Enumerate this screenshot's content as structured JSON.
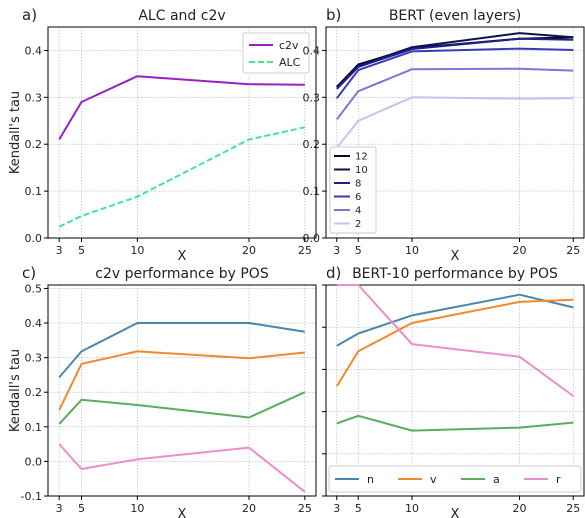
{
  "chart_data": [
    {
      "type": "line",
      "panel_label": "a)",
      "title": "ALC and c2v",
      "xlabel": "X",
      "ylabel": "Kendall's tau",
      "x": [
        3,
        5,
        10,
        20,
        25
      ],
      "xticks": [
        3,
        5,
        10,
        20,
        25
      ],
      "xlim": [
        2,
        26
      ],
      "ylim": [
        0,
        0.45
      ],
      "yticks": [
        "0.0",
        "0.1",
        "0.2",
        "0.3",
        "0.4"
      ],
      "grid": true,
      "legend": "top-right",
      "series": [
        {
          "name": "c2v",
          "color": "#9b1fc4",
          "style": "solid",
          "values": [
            0.21,
            0.29,
            0.345,
            0.328,
            0.327
          ]
        },
        {
          "name": "ALC",
          "color": "#3ee88e",
          "style": "dashed",
          "values": [
            0.024,
            0.047,
            0.088,
            0.21,
            0.236
          ]
        }
      ]
    },
    {
      "type": "line",
      "panel_label": "b)",
      "title": "BERT (even layers)",
      "xlabel": "X",
      "ylabel": "",
      "x": [
        3,
        5,
        10,
        20,
        25
      ],
      "xticks": [
        3,
        5,
        10,
        20,
        25
      ],
      "xlim": [
        2,
        26
      ],
      "ylim": [
        0,
        0.45
      ],
      "yticks": [
        "0.0",
        "0.1",
        "0.2",
        "0.3",
        "0.4"
      ],
      "grid": true,
      "legend": "bottom-left",
      "series": [
        {
          "name": "12",
          "color": "#080828",
          "style": "solid",
          "values": [
            0.322,
            0.37,
            0.405,
            0.425,
            0.428
          ]
        },
        {
          "name": "10",
          "color": "#10104e",
          "style": "solid",
          "values": [
            0.322,
            0.367,
            0.407,
            0.437,
            0.428
          ]
        },
        {
          "name": "8",
          "color": "#1e1e8c",
          "style": "solid",
          "values": [
            0.318,
            0.365,
            0.403,
            0.425,
            0.423
          ]
        },
        {
          "name": "6",
          "color": "#3a3ab8",
          "style": "solid",
          "values": [
            0.298,
            0.358,
            0.398,
            0.404,
            0.401
          ]
        },
        {
          "name": "4",
          "color": "#7878dc",
          "style": "solid",
          "values": [
            0.253,
            0.313,
            0.36,
            0.361,
            0.357
          ]
        },
        {
          "name": "2",
          "color": "#c4c4f0",
          "style": "solid",
          "values": [
            0.192,
            0.25,
            0.3,
            0.297,
            0.298
          ]
        }
      ]
    },
    {
      "type": "line",
      "panel_label": "c)",
      "title": "c2v performance by POS",
      "xlabel": "X",
      "ylabel": "Kendall's tau",
      "x": [
        3,
        5,
        10,
        20,
        25
      ],
      "xticks": [
        3,
        5,
        10,
        20,
        25
      ],
      "xlim": [
        2,
        26
      ],
      "ylim": [
        -0.1,
        0.51
      ],
      "yticks": [
        "-0.1",
        "0.0",
        "0.1",
        "0.2",
        "0.3",
        "0.4",
        "0.5"
      ],
      "grid": true,
      "legend": "none",
      "series": [
        {
          "name": "n",
          "color": "#4a86b0",
          "style": "solid",
          "values": [
            0.243,
            0.318,
            0.4,
            0.4,
            0.375
          ]
        },
        {
          "name": "v",
          "color": "#ef8b2c",
          "style": "solid",
          "values": [
            0.148,
            0.282,
            0.318,
            0.298,
            0.315
          ]
        },
        {
          "name": "a",
          "color": "#5aad5a",
          "style": "solid",
          "values": [
            0.108,
            0.178,
            0.163,
            0.127,
            0.2
          ]
        },
        {
          "name": "r",
          "color": "#eb8fc8",
          "style": "solid",
          "values": [
            0.05,
            -0.022,
            0.006,
            0.04,
            -0.088
          ]
        }
      ]
    },
    {
      "type": "line",
      "panel_label": "d)",
      "title": "BERT-10 performance by POS",
      "xlabel": "X",
      "ylabel": "",
      "x": [
        3,
        5,
        10,
        20,
        25
      ],
      "xticks": [
        3,
        5,
        10,
        20,
        25
      ],
      "xlim": [
        2,
        26
      ],
      "ylim": [
        0,
        0.5
      ],
      "yticks": [],
      "grid": true,
      "legend": "bottom",
      "series": [
        {
          "name": "n",
          "color": "#4a86b0",
          "style": "solid",
          "values": [
            0.356,
            0.385,
            0.428,
            0.477,
            0.447
          ]
        },
        {
          "name": "v",
          "color": "#ef8b2c",
          "style": "solid",
          "values": [
            0.26,
            0.343,
            0.41,
            0.46,
            0.465
          ]
        },
        {
          "name": "a",
          "color": "#5aad5a",
          "style": "solid",
          "values": [
            0.172,
            0.19,
            0.155,
            0.162,
            0.174
          ]
        },
        {
          "name": "r",
          "color": "#eb8fc8",
          "style": "solid",
          "values": [
            0.5,
            0.5,
            0.36,
            0.33,
            0.237
          ]
        }
      ]
    }
  ]
}
